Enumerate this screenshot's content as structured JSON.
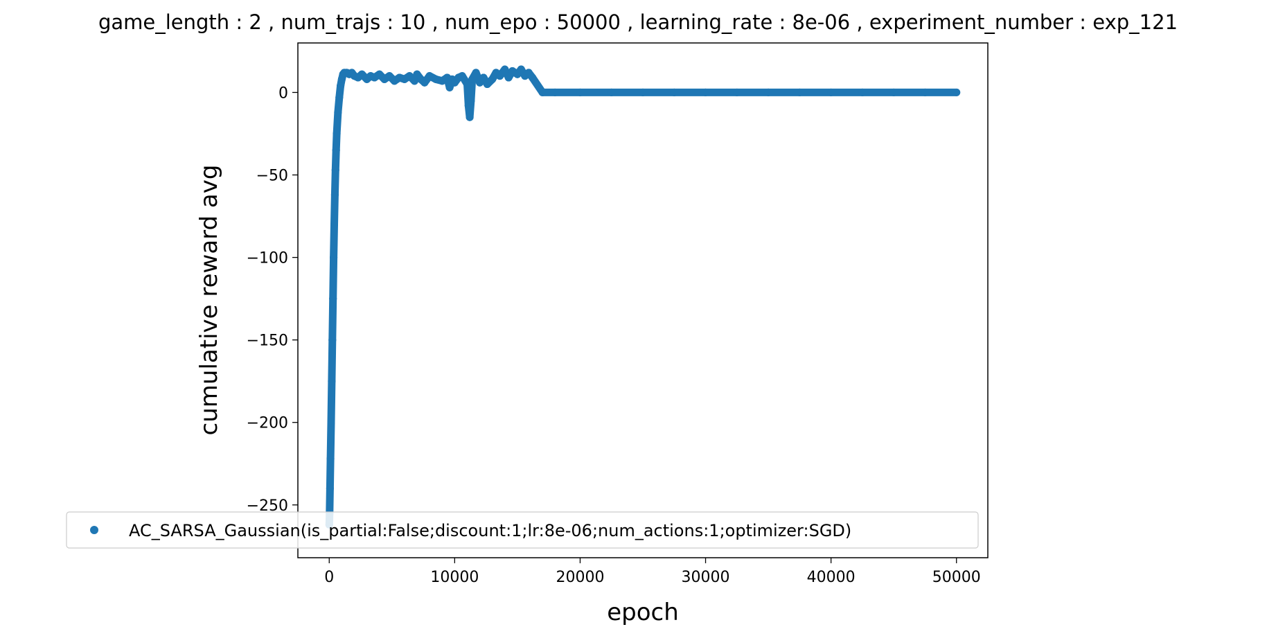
{
  "chart_data": {
    "type": "scatter",
    "title": "game_length : 2 , num_trajs : 10 , num_epo : 50000 , learning_rate : 8e-06 , experiment_number : exp_121",
    "xlabel": "epoch",
    "ylabel": "cumulative reward avg",
    "xlim": [
      -2500,
      52500
    ],
    "ylim": [
      -282,
      30
    ],
    "xticks": [
      0,
      10000,
      20000,
      30000,
      40000,
      50000
    ],
    "xtick_labels": [
      "0",
      "10000",
      "20000",
      "30000",
      "40000",
      "50000"
    ],
    "yticks": [
      0,
      -50,
      -100,
      -150,
      -200,
      -250
    ],
    "ytick_labels": [
      "0",
      "−50",
      "−100",
      "−150",
      "−200",
      "−250"
    ],
    "grid": false,
    "legend_position": "lower-center",
    "series": [
      {
        "name": "AC_SARSA_Gaussian(is_partial:False;discount:1;lr:8e-06;num_actions:1;optimizer:SGD)",
        "color": "#1f77b4",
        "marker": "circle",
        "x": [
          0,
          30,
          60,
          100,
          150,
          200,
          250,
          300,
          350,
          400,
          450,
          500,
          550,
          600,
          700,
          800,
          900,
          1000,
          1100,
          1200,
          1400,
          1600,
          1800,
          2000,
          2300,
          2600,
          3000,
          3300,
          3600,
          4000,
          4400,
          4800,
          5200,
          5600,
          6000,
          6400,
          6800,
          7000,
          7300,
          7600,
          8000,
          8500,
          9000,
          9400,
          9600,
          9800,
          10000,
          10300,
          10600,
          11000,
          11100,
          11200,
          11300,
          11400,
          11700,
          12000,
          12300,
          12600,
          13000,
          13300,
          13600,
          14000,
          14300,
          14600,
          15000,
          15300,
          15600,
          15900,
          16200,
          17000,
          18000,
          20000,
          22500,
          25000,
          27500,
          30000,
          32500,
          35000,
          37500,
          40000,
          42500,
          45000,
          47500,
          50000
        ],
        "y": [
          -262,
          -255,
          -240,
          -222,
          -200,
          -175,
          -150,
          -125,
          -100,
          -80,
          -62,
          -47,
          -35,
          -25,
          -12,
          -3,
          4,
          8,
          11,
          12,
          12,
          11,
          12,
          10,
          9,
          11,
          8,
          10,
          9,
          11,
          8,
          10,
          7,
          9,
          8,
          10,
          7,
          11,
          8,
          6,
          10,
          8,
          7,
          9,
          3,
          8,
          6,
          9,
          10,
          5,
          -8,
          -15,
          -5,
          8,
          12,
          6,
          9,
          5,
          8,
          12,
          10,
          14,
          9,
          13,
          11,
          14,
          10,
          12,
          9,
          0,
          0,
          0,
          0,
          0,
          0,
          0,
          0,
          0,
          0,
          0,
          0,
          0,
          0,
          0
        ]
      }
    ]
  }
}
